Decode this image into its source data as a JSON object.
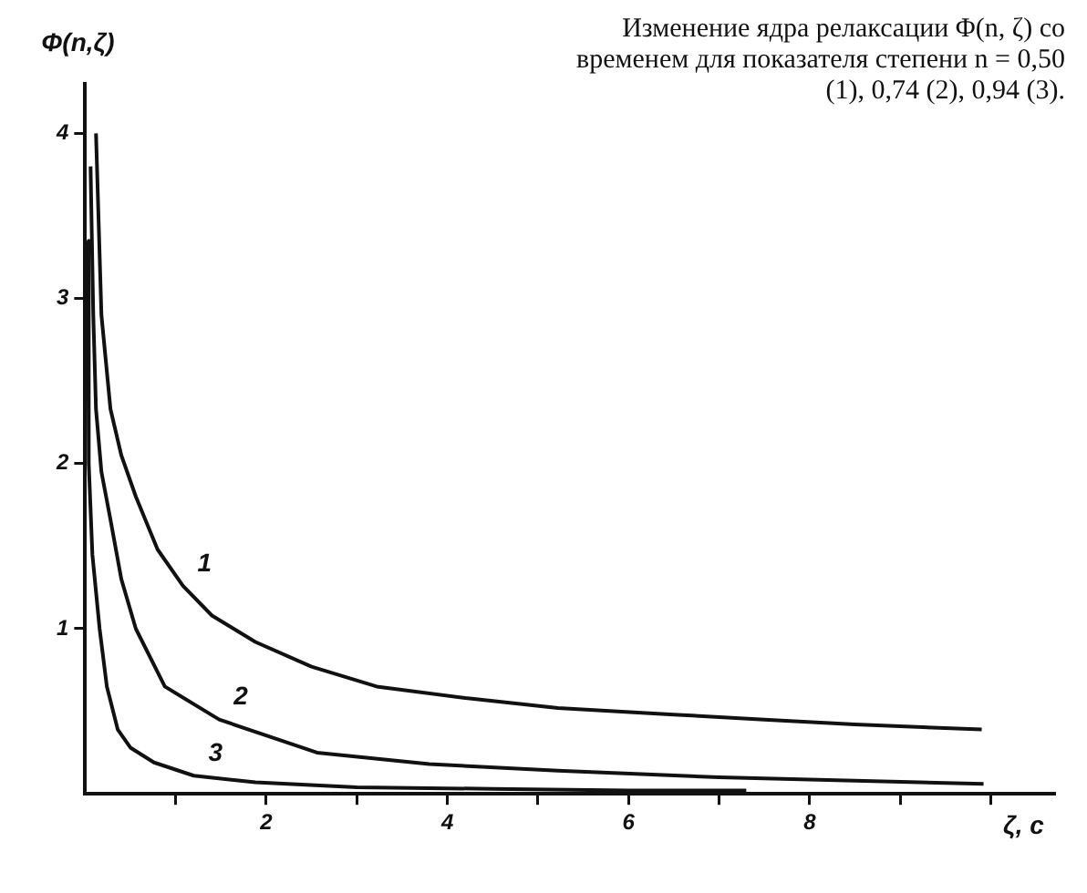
{
  "chart_data": {
    "type": "line",
    "title": "Изменение ядра релаксации Φ(n, ζ) со временем для показателя степени n = 0,50 (1), 0,74 (2), 0,94 (3).",
    "xlabel": "ζ, c",
    "ylabel": "Φ(n,ζ)",
    "xlim": [
      0,
      10.7
    ],
    "ylim": [
      0,
      4.3
    ],
    "xticks": [
      {
        "value": 1,
        "label": null
      },
      2,
      {
        "value": 3,
        "label": null
      },
      4,
      {
        "value": 5,
        "label": null
      },
      6,
      {
        "value": 7,
        "label": null
      },
      8,
      {
        "value": 9,
        "label": null
      },
      {
        "value": 10,
        "label": null
      }
    ],
    "yticks": [
      1,
      2,
      3,
      4
    ],
    "grid": false,
    "legend": false,
    "marker": "none",
    "line_style": "solid",
    "series": [
      {
        "name": "1",
        "color": "#111111",
        "x": [
          0.12,
          0.18,
          0.28,
          0.4,
          0.56,
          0.8,
          1.08,
          1.4,
          1.88,
          2.5,
          3.22,
          4.2,
          5.22,
          6.5,
          7.5,
          8.5,
          9.9
        ],
        "values": [
          4.0,
          2.9,
          2.33,
          2.05,
          1.8,
          1.48,
          1.26,
          1.08,
          0.92,
          0.77,
          0.65,
          0.58,
          0.52,
          0.48,
          0.45,
          0.42,
          0.39
        ]
      },
      {
        "name": "2",
        "color": "#111111",
        "x": [
          0.06,
          0.09,
          0.12,
          0.18,
          0.28,
          0.4,
          0.56,
          0.88,
          1.48,
          2.56,
          3.8,
          5.22,
          7,
          8.5,
          9.92
        ],
        "values": [
          3.8,
          2.9,
          2.33,
          1.95,
          1.66,
          1.3,
          1.0,
          0.65,
          0.45,
          0.25,
          0.18,
          0.14,
          0.1,
          0.08,
          0.06
        ]
      },
      {
        "name": "3",
        "color": "#111111",
        "x": [
          0.03,
          0.04,
          0.08,
          0.16,
          0.24,
          0.36,
          0.5,
          0.76,
          1.2,
          1.88,
          3,
          4.5,
          6,
          7.3
        ],
        "values": [
          3.35,
          2.0,
          1.45,
          1.0,
          0.65,
          0.39,
          0.28,
          0.19,
          0.11,
          0.07,
          0.04,
          0.03,
          0.02,
          0.02
        ]
      }
    ]
  }
}
